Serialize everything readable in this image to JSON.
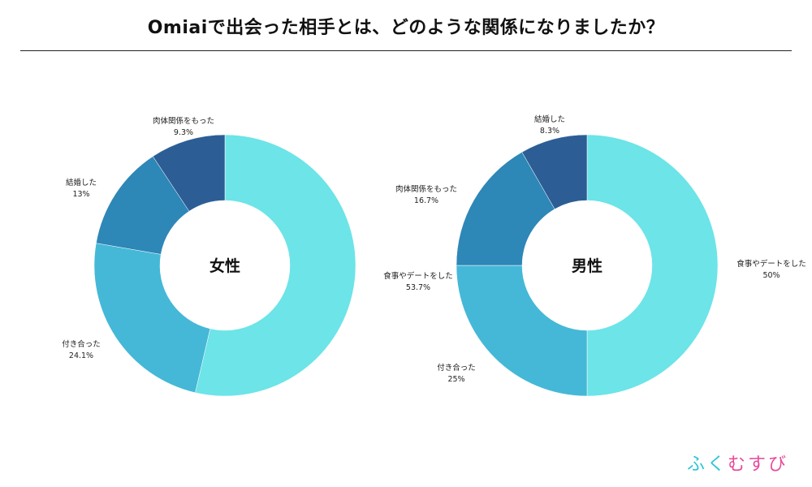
{
  "page": {
    "title": "Omiaiで出会った相手とは、どのような関係になりましたか？",
    "logo": {
      "part1": "ふく",
      "part2": "むすび",
      "color1": "#2ec5d6",
      "color2": "#e84a9a"
    }
  },
  "chart_data": [
    {
      "type": "pie",
      "donut": true,
      "center_label": "女性",
      "start": "12 o'clock, clockwise",
      "slices": [
        {
          "label": "食事やデートをした",
          "value": 53.7,
          "color": "#6ce4e8"
        },
        {
          "label": "付き合った",
          "value": 24.1,
          "color": "#45b8d7"
        },
        {
          "label": "結婚した",
          "value": 13,
          "value_text": "13%",
          "color": "#2d87b7"
        },
        {
          "label": "肉体関係をもった",
          "value": 9.3,
          "color": "#2c5e95"
        }
      ]
    },
    {
      "type": "pie",
      "donut": true,
      "center_label": "男性",
      "start": "12 o'clock, clockwise",
      "slices": [
        {
          "label": "食事やデートをした",
          "value": 50,
          "value_text": "50%",
          "color": "#6ce4e8"
        },
        {
          "label": "付き合った",
          "value": 25,
          "value_text": "25%",
          "color": "#45b8d7"
        },
        {
          "label": "肉体関係をもった",
          "value": 16.7,
          "color": "#2d87b7"
        },
        {
          "label": "結婚した",
          "value": 8.3,
          "color": "#2c5e95"
        }
      ]
    }
  ]
}
